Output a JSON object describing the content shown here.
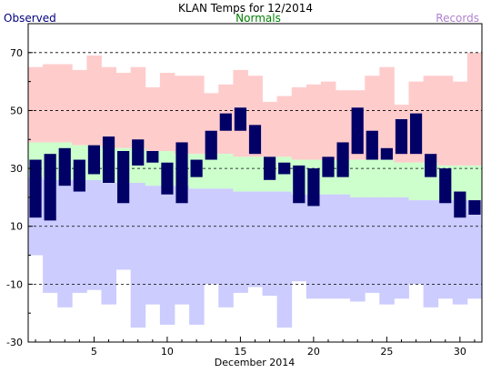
{
  "chart_data": {
    "type": "bar",
    "title": "KLAN Temps for 12/2014",
    "xlabel": "December 2014",
    "ylabel": "",
    "legend": [
      "Observed",
      "Normals",
      "Records"
    ],
    "legend_placement": "top",
    "ylim": [
      -30,
      80
    ],
    "yticks": [
      -30,
      -10,
      10,
      30,
      50,
      70
    ],
    "xlim": [
      0.5,
      31.5
    ],
    "xticks": [
      5,
      10,
      15,
      20,
      25,
      30
    ],
    "grid": "dashed horizontal at labelled y ticks",
    "days": [
      1,
      2,
      3,
      4,
      5,
      6,
      7,
      8,
      9,
      10,
      11,
      12,
      13,
      14,
      15,
      16,
      17,
      18,
      19,
      20,
      21,
      22,
      23,
      24,
      25,
      26,
      27,
      28,
      29,
      30,
      31
    ],
    "series": [
      {
        "name": "Records",
        "color": "#ffcccc",
        "high": [
          65,
          66,
          66,
          64,
          69,
          65,
          63,
          65,
          58,
          63,
          62,
          62,
          56,
          59,
          64,
          62,
          53,
          55,
          58,
          59,
          60,
          57,
          57,
          62,
          65,
          52,
          60,
          62,
          62,
          60,
          70
        ]
      },
      {
        "name": "Normals",
        "color": "#ccffcc",
        "high": [
          39,
          39,
          39,
          38,
          38,
          37,
          37,
          37,
          36,
          36,
          35,
          35,
          35,
          35,
          34,
          34,
          34,
          34,
          33,
          33,
          33,
          33,
          33,
          33,
          33,
          32,
          32,
          32,
          31,
          31,
          31
        ]
      },
      {
        "name": "Normals",
        "color": "#ccccff",
        "low": [
          27,
          26,
          26,
          26,
          26,
          25,
          25,
          25,
          24,
          24,
          24,
          23,
          23,
          23,
          22,
          22,
          22,
          22,
          21,
          21,
          21,
          21,
          20,
          20,
          20,
          20,
          19,
          19,
          19,
          19,
          19
        ]
      },
      {
        "name": "Records",
        "color": "#ffffff",
        "low": [
          0,
          -13,
          -18,
          -13,
          -12,
          -17,
          -5,
          -25,
          -17,
          -24,
          -17,
          -24,
          -10,
          -18,
          -13,
          -11,
          -14,
          -25,
          -9,
          -15,
          -15,
          -15,
          -16,
          -13,
          -17,
          -15,
          -10,
          -18,
          -15,
          -17,
          -15
        ]
      },
      {
        "name": "Observed",
        "color": "#000066",
        "high": [
          33,
          35,
          37,
          33,
          38,
          41,
          36,
          40,
          36,
          32,
          39,
          33,
          43,
          49,
          51,
          45,
          34,
          32,
          31,
          30,
          34,
          39,
          51,
          43,
          37,
          47,
          49,
          35,
          30,
          22,
          19
        ],
        "low": [
          13,
          12,
          24,
          22,
          28,
          25,
          18,
          31,
          32,
          21,
          18,
          27,
          33,
          43,
          43,
          35,
          26,
          28,
          18,
          17,
          27,
          27,
          35,
          33,
          33,
          35,
          35,
          27,
          18,
          13,
          14
        ]
      }
    ]
  },
  "colors": {
    "observed": "#000066",
    "normals_band": "#ccffcc",
    "normal_low_band": "#ccccff",
    "record_band": "#ffcccc",
    "legend_observed": "#000080",
    "legend_normals": "#008000",
    "legend_records": "#b080d0"
  }
}
